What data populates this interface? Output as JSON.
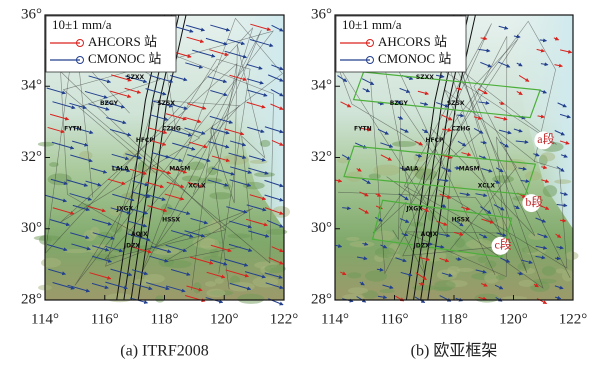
{
  "axes": {
    "lat_ticks": [
      {
        "value": 36,
        "label": "36°"
      },
      {
        "value": 34,
        "label": "34°"
      },
      {
        "value": 32,
        "label": "32°"
      },
      {
        "value": 30,
        "label": "30°"
      },
      {
        "value": 28,
        "label": "28°"
      }
    ],
    "lon_ticks": [
      {
        "value": 114,
        "label": "114°"
      },
      {
        "value": 116,
        "label": "116°"
      },
      {
        "value": 118,
        "label": "118°"
      },
      {
        "value": 120,
        "label": "120°"
      },
      {
        "value": 122,
        "label": "122°"
      }
    ]
  },
  "panels": [
    {
      "caption": "(a) ITRF2008",
      "legend": {
        "scale": "10±1 mm/a",
        "items": [
          "AHCORS 站",
          "CMONOC 站"
        ]
      },
      "stations": [
        "SZXX",
        "BZGY",
        "SZSX",
        "FYTN",
        "HFCP",
        "CZHG",
        "LALA",
        "MASM",
        "XCLX",
        "JXGX",
        "HSSX",
        "AQJX",
        "JDZX"
      ]
    },
    {
      "caption": "(b) 欧亚框架",
      "legend": {
        "scale": "10±1 mm/a",
        "items": [
          "AHCORS 站",
          "CMONOC 站"
        ]
      },
      "stations": [
        "SZXX",
        "BZGY",
        "SZSX",
        "FYTN",
        "HFCP",
        "CZHG",
        "LALA",
        "MASM",
        "XCLX",
        "JXGX",
        "HSSX",
        "AQJX",
        "JDZX"
      ],
      "segments": [
        "a段",
        "b段",
        "c段"
      ]
    }
  ]
}
